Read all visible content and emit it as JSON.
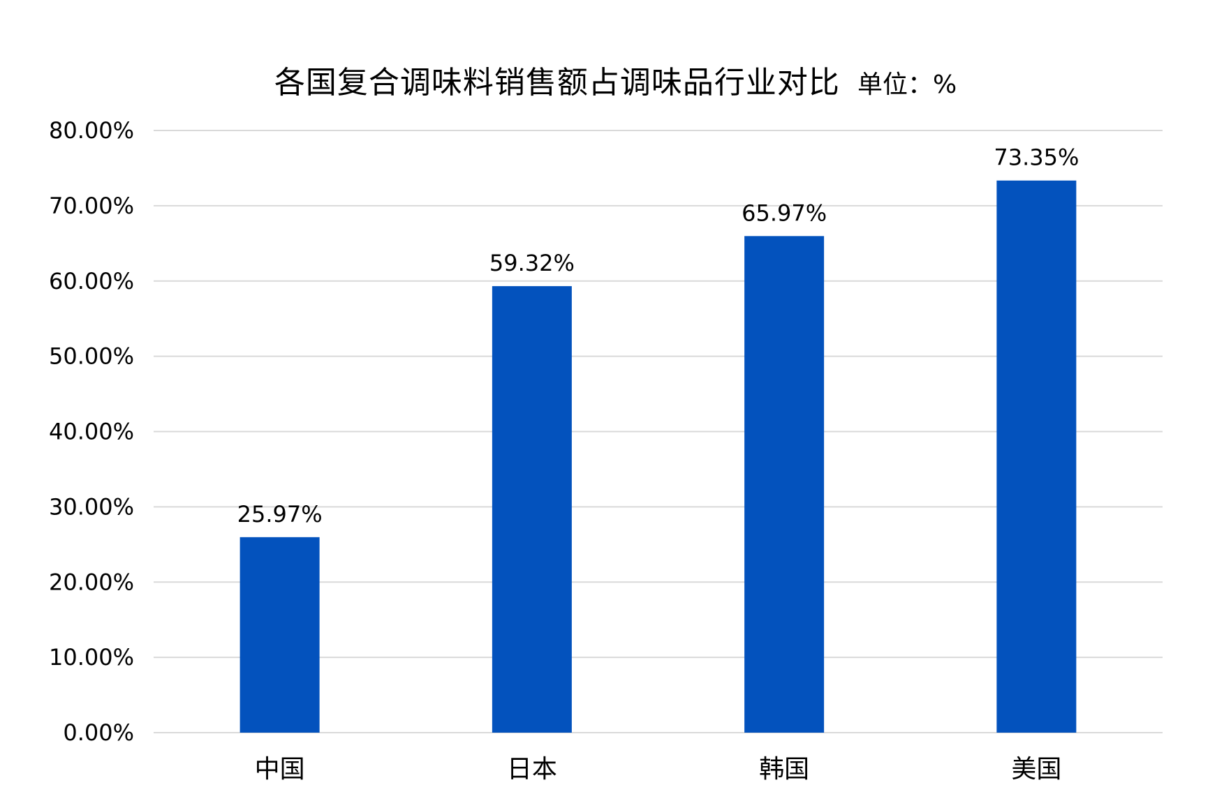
{
  "chart_data": {
    "type": "bar",
    "title": "各国复合调味料销售额占调味品行业对比",
    "unit_label": "单位：%",
    "categories": [
      "中国",
      "日本",
      "韩国",
      "美国"
    ],
    "values": [
      25.97,
      59.32,
      65.97,
      73.35
    ],
    "value_labels": [
      "25.97%",
      "59.32%",
      "65.97%",
      "73.35%"
    ],
    "ylim": [
      0,
      80
    ],
    "yticks": [
      0,
      10,
      20,
      30,
      40,
      50,
      60,
      70,
      80
    ],
    "ytick_labels": [
      "0.00%",
      "10.00%",
      "20.00%",
      "30.00%",
      "40.00%",
      "50.00%",
      "60.00%",
      "70.00%",
      "80.00%"
    ],
    "grid": true,
    "legend": "none",
    "bar_color": "#0352BD",
    "grid_color": "#D9D9D9"
  }
}
